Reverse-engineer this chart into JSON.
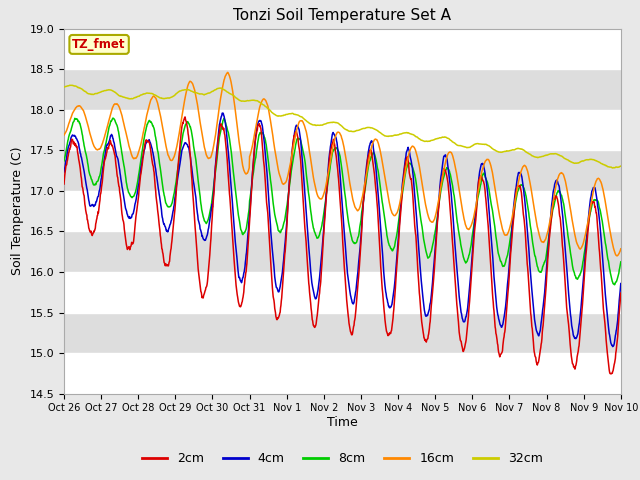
{
  "title": "Tonzi Soil Temperature Set A",
  "xlabel": "Time",
  "ylabel": "Soil Temperature (C)",
  "ylim": [
    14.5,
    19.0
  ],
  "yticks": [
    14.5,
    15.0,
    15.5,
    16.0,
    16.5,
    17.0,
    17.5,
    18.0,
    18.5,
    19.0
  ],
  "line_colors": {
    "2cm": "#dd0000",
    "4cm": "#0000cc",
    "8cm": "#00cc00",
    "16cm": "#ff8800",
    "32cm": "#cccc00"
  },
  "legend_labels": [
    "2cm",
    "4cm",
    "8cm",
    "16cm",
    "32cm"
  ],
  "annotation_text": "TZ_fmet",
  "annotation_bg": "#ffffcc",
  "annotation_border": "#aaaa00",
  "annotation_text_color": "#cc0000",
  "fig_bg": "#e8e8e8",
  "plot_bg": "#e8e8e8",
  "x_tick_labels": [
    "Oct 26",
    "Oct 27",
    "Oct 28",
    "Oct 29",
    "Oct 30",
    "Oct 31",
    "Nov 1",
    "Nov 2",
    "Nov 3",
    "Nov 4",
    "Nov 5",
    "Nov 6",
    "Nov 7",
    "Nov 8",
    "Nov 9",
    "Nov 10"
  ],
  "x_tick_positions": [
    0,
    1,
    2,
    3,
    4,
    5,
    6,
    7,
    8,
    9,
    10,
    11,
    12,
    13,
    14,
    15
  ],
  "band_colors": [
    "#ffffff",
    "#dddddd"
  ]
}
